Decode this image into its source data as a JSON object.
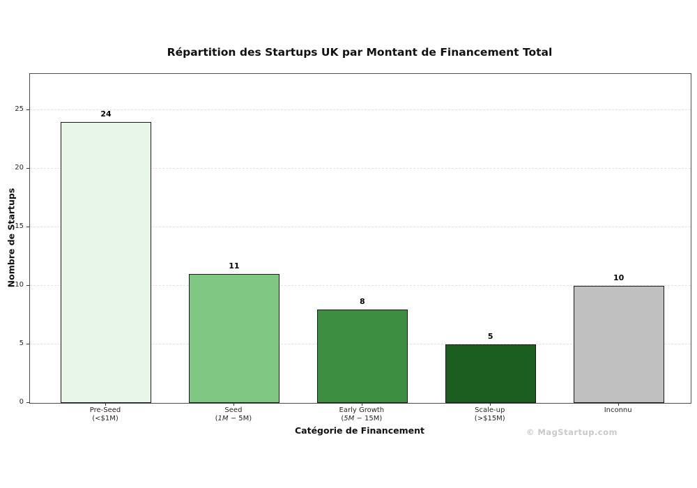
{
  "page": {
    "watermark": "© MagStartup.com"
  },
  "chart_data": {
    "type": "bar",
    "title": "Répartition des Startups UK par Montant de Financement Total",
    "xlabel": "Catégorie de Financement",
    "ylabel": "Nombre de Startups",
    "categories": [
      {
        "label": "Pre-Seed",
        "sublabel_segments": [
          {
            "text": "(<$1M)",
            "italic": false
          }
        ]
      },
      {
        "label": "Seed",
        "sublabel_segments": [
          {
            "text": "(",
            "italic": false
          },
          {
            "text": "1M",
            "italic": true
          },
          {
            "text": " − ",
            "italic": false
          },
          {
            "text": "5M)",
            "italic": false
          }
        ]
      },
      {
        "label": "Early Growth",
        "sublabel_segments": [
          {
            "text": "(",
            "italic": false
          },
          {
            "text": "5M",
            "italic": true
          },
          {
            "text": " − ",
            "italic": false
          },
          {
            "text": "15M)",
            "italic": false
          }
        ]
      },
      {
        "label": "Scale-up",
        "sublabel_segments": [
          {
            "text": "(>$15M)",
            "italic": false
          }
        ]
      },
      {
        "label": "Inconnu",
        "sublabel_segments": [
          {
            "text": "",
            "italic": false
          }
        ]
      }
    ],
    "values": [
      24,
      11,
      8,
      5,
      10
    ],
    "bar_colors": [
      "#e8f5e9",
      "#81c784",
      "#3d8e40",
      "#1b5e20",
      "#c0c0c0"
    ],
    "bar_edge_color": "#1a1a1a",
    "yticks": [
      0,
      5,
      10,
      15,
      20,
      25
    ],
    "ylim": [
      0,
      28.1
    ],
    "grid": "horizontal-dashed",
    "legend": "none"
  }
}
